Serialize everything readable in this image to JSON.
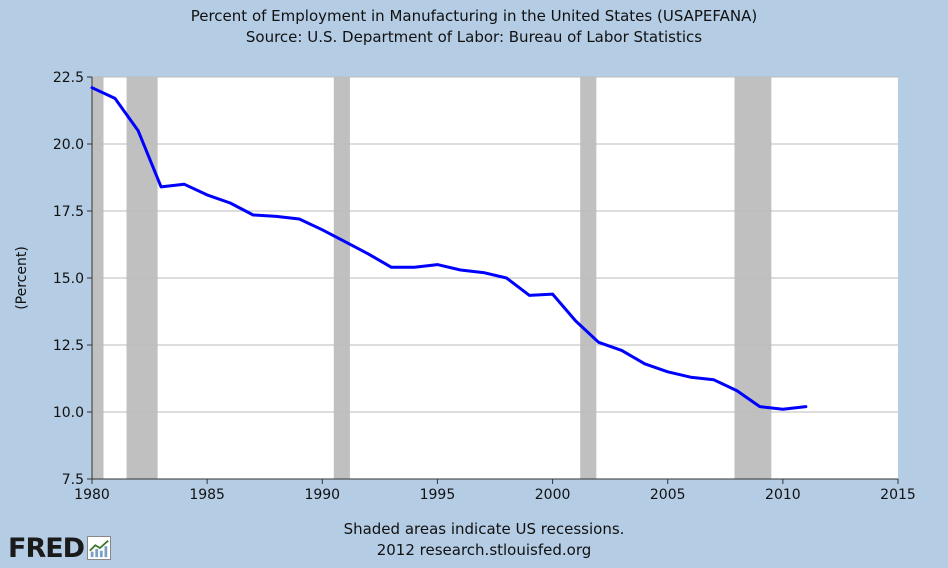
{
  "chart_data": {
    "type": "line",
    "title": "Percent of Employment in Manufacturing in the United States (USAPEFANA)",
    "subtitle": "Source: U.S. Department of Labor: Bureau of Labor Statistics",
    "xlabel": "",
    "ylabel": "(Percent)",
    "xlim": [
      1980,
      2015
    ],
    "ylim": [
      7.5,
      22.5
    ],
    "x_ticks": [
      "1980",
      "1985",
      "1990",
      "1995",
      "2000",
      "2005",
      "2010",
      "2015"
    ],
    "y_ticks": [
      "7.5",
      "10.0",
      "12.5",
      "15.0",
      "17.5",
      "20.0",
      "22.5"
    ],
    "grid": true,
    "recessions": [
      [
        1980.0,
        1980.5
      ],
      [
        1981.5,
        1982.85
      ],
      [
        1990.5,
        1991.2
      ],
      [
        2001.2,
        2001.9
      ],
      [
        2007.9,
        2009.5
      ]
    ],
    "series": [
      {
        "color": "#0000ff",
        "x": [
          1980,
          1981,
          1982,
          1983,
          1984,
          1985,
          1986,
          1987,
          1988,
          1989,
          1990,
          1991,
          1992,
          1993,
          1994,
          1995,
          1996,
          1997,
          1998,
          1999,
          2000,
          2001,
          2002,
          2003,
          2004,
          2005,
          2006,
          2007,
          2008,
          2009,
          2010,
          2011
        ],
        "y": [
          22.1,
          21.7,
          20.5,
          18.4,
          18.5,
          18.1,
          17.8,
          17.35,
          17.3,
          17.2,
          16.8,
          16.35,
          15.9,
          15.4,
          15.4,
          15.5,
          15.3,
          15.2,
          15.0,
          14.35,
          14.4,
          13.4,
          12.6,
          12.3,
          11.8,
          11.5,
          11.3,
          11.2,
          10.8,
          10.2,
          10.1,
          10.2
        ]
      }
    ]
  },
  "footer": {
    "note": "Shaded areas indicate US recessions.",
    "credit": "2012 research.stlouisfed.org"
  },
  "logo": {
    "text": "FRED"
  }
}
